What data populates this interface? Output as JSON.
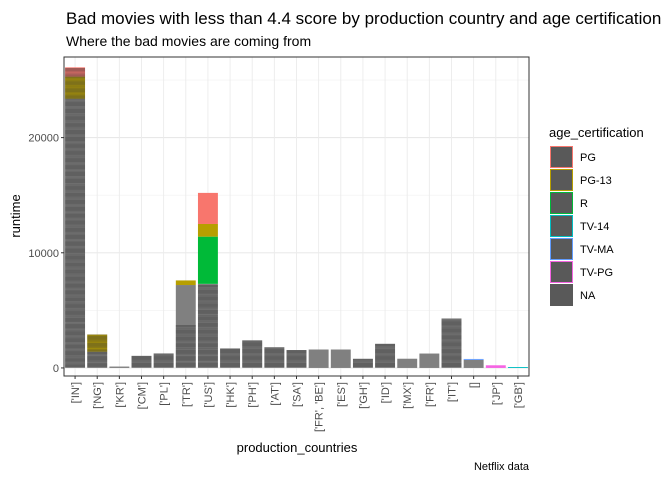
{
  "chart_data": {
    "type": "bar",
    "title": "Bad movies with less than 4.4 score by production country and age certification",
    "subtitle": "Where the bad movies are coming from",
    "xlabel": "production_countries",
    "ylabel": "runtime",
    "caption": "Netflix data",
    "ylim": [
      -700,
      27000
    ],
    "y_ticks": [
      0,
      10000,
      20000
    ],
    "y_tick_labels": [
      "0",
      "10000",
      "20000"
    ],
    "grid": true,
    "categories": [
      "['IN']",
      "['NG']",
      "['KR']",
      "['CM']",
      "['PL']",
      "['TR']",
      "['US']",
      "['HK']",
      "['PH']",
      "['AT']",
      "['SA']",
      "['FR', 'BE']",
      "['ES']",
      "['GH']",
      "['ID']",
      "['MX']",
      "['FR']",
      "['IT']",
      "[]",
      "['JP']",
      "['GB']"
    ],
    "legend": {
      "title": "age_certification",
      "position": "right",
      "entries": [
        {
          "label": "PG",
          "color": "#F8766D"
        },
        {
          "label": "PG-13",
          "color": "#B79F00"
        },
        {
          "label": "R",
          "color": "#00BA38"
        },
        {
          "label": "TV-14",
          "color": "#00BFC4"
        },
        {
          "label": "TV-MA",
          "color": "#619CFF"
        },
        {
          "label": "TV-PG",
          "color": "#F564E3"
        },
        {
          "label": "NA",
          "color": "#595959"
        }
      ]
    },
    "series": [
      {
        "name": "PG",
        "color": "#F8766D",
        "values": [
          800,
          0,
          0,
          0,
          0,
          0,
          2700,
          0,
          0,
          0,
          0,
          0,
          0,
          0,
          0,
          0,
          0,
          0,
          0,
          0,
          0
        ]
      },
      {
        "name": "PG-13",
        "color": "#B79F00",
        "values": [
          1900,
          1500,
          0,
          0,
          0,
          400,
          1100,
          0,
          0,
          0,
          0,
          0,
          0,
          0,
          0,
          0,
          0,
          0,
          0,
          0,
          0
        ]
      },
      {
        "name": "R",
        "color": "#00BA38",
        "values": [
          0,
          0,
          0,
          0,
          0,
          0,
          4100,
          0,
          0,
          0,
          0,
          0,
          0,
          0,
          0,
          0,
          0,
          0,
          0,
          0,
          0
        ]
      },
      {
        "name": "TV-14",
        "color": "#00BFC4",
        "values": [
          0,
          0,
          0,
          0,
          0,
          0,
          0,
          0,
          0,
          0,
          0,
          0,
          0,
          0,
          0,
          0,
          0,
          0,
          0,
          0,
          80
        ]
      },
      {
        "name": "TV-MA",
        "color": "#619CFF",
        "values": [
          0,
          0,
          0,
          0,
          0,
          0,
          0,
          0,
          0,
          0,
          0,
          0,
          0,
          0,
          0,
          0,
          0,
          0,
          80,
          0,
          0
        ]
      },
      {
        "name": "TV-PG",
        "color": "#F564E3",
        "values": [
          0,
          0,
          0,
          0,
          0,
          0,
          0,
          0,
          0,
          0,
          0,
          0,
          0,
          0,
          0,
          0,
          0,
          0,
          0,
          230,
          0
        ]
      },
      {
        "name": "NA",
        "color": "#808080",
        "values": [
          23400,
          1400,
          120,
          1050,
          1250,
          7200,
          7300,
          1700,
          2400,
          1800,
          1550,
          1600,
          1600,
          800,
          2100,
          800,
          1250,
          4300,
          700,
          0,
          0
        ]
      }
    ],
    "inner_lines": [
      [
        120,
        105,
        103,
        100,
        103,
        105,
        100,
        110,
        100,
        98,
        105,
        103,
        100,
        98,
        100,
        105,
        110,
        103,
        100,
        98,
        105,
        103,
        100,
        107,
        100,
        98,
        103,
        100,
        105,
        103,
        100,
        98,
        105,
        100,
        103,
        100,
        98,
        105,
        110,
        100,
        103,
        100,
        105,
        98,
        100,
        103,
        105,
        100,
        98,
        100,
        103,
        105,
        100,
        103,
        98,
        100,
        110,
        105,
        100,
        103,
        98,
        100,
        105,
        103,
        100,
        98,
        105,
        100,
        103,
        100,
        98,
        105,
        103,
        100,
        98,
        100,
        103,
        105,
        100,
        98,
        103,
        100,
        105,
        103,
        100,
        98,
        103,
        100,
        105,
        103,
        100,
        98,
        105,
        100,
        103,
        100,
        98,
        105,
        103,
        100,
        98,
        100,
        103,
        105,
        100,
        98,
        103,
        100,
        105,
        103,
        100,
        98,
        105,
        100,
        103,
        100,
        98,
        105,
        103,
        100,
        98,
        100,
        103,
        105,
        100,
        98,
        103,
        100,
        105,
        103,
        100,
        98,
        105,
        100,
        103,
        100,
        98,
        105,
        103,
        100,
        98,
        100,
        103,
        105,
        100,
        98,
        103,
        100,
        105,
        103,
        100,
        98,
        105,
        100,
        103,
        100,
        98,
        105,
        103,
        100,
        98,
        100,
        103,
        105,
        100,
        98,
        103,
        100,
        105,
        103,
        100,
        98,
        105,
        100,
        103,
        100,
        98,
        105,
        103,
        100,
        98,
        100,
        103,
        105,
        100,
        98,
        103,
        100,
        105,
        103,
        100,
        98,
        105,
        100,
        103,
        100,
        98,
        105,
        103,
        100,
        98,
        100,
        103,
        105,
        100,
        98,
        103,
        100,
        105,
        103,
        100,
        98,
        105,
        100,
        103,
        100,
        98,
        105,
        103,
        100,
        98,
        100,
        103,
        105,
        100,
        98,
        103,
        100,
        105,
        103,
        100,
        98,
        105,
        100,
        103,
        100,
        98,
        105,
        103,
        100,
        98,
        100,
        103,
        105,
        100,
        98,
        103,
        100,
        105,
        103,
        100,
        98,
        105,
        100,
        103,
        100,
        98,
        105,
        103,
        100,
        98,
        100,
        103,
        105,
        100,
        98,
        103
      ],
      [
        100,
        110,
        95,
        105,
        110,
        98,
        100,
        105,
        95,
        100,
        110,
        105,
        95,
        105,
        98,
        100,
        110,
        95,
        105,
        100,
        98,
        110,
        100,
        95,
        105,
        100,
        98,
        110
      ],
      [],
      [
        105,
        100,
        98,
        103,
        105,
        100,
        98,
        103,
        105,
        100
      ],
      [
        105,
        100,
        98,
        103,
        105,
        100,
        98,
        103,
        105,
        100,
        98,
        103
      ],
      [
        100,
        110,
        95,
        100,
        105,
        110,
        98,
        100,
        105,
        95,
        110,
        100,
        98,
        105,
        100,
        110,
        95,
        105,
        100,
        98,
        110,
        105,
        100,
        95,
        105,
        100,
        110,
        98,
        100,
        105,
        95,
        110,
        100,
        98,
        105,
        110
      ],
      [
        100,
        110,
        95,
        100,
        105,
        110,
        98,
        100,
        105,
        95,
        110,
        100,
        98,
        105,
        100,
        110,
        95,
        105,
        100,
        98,
        110,
        105,
        100,
        95,
        105,
        100,
        110,
        98,
        100,
        105,
        95,
        110,
        100,
        98,
        105,
        110,
        100,
        95,
        105,
        100,
        110,
        98,
        100,
        105,
        95,
        110,
        100,
        98,
        105,
        110,
        100,
        95,
        105,
        100,
        110,
        98,
        100,
        105,
        95,
        110,
        100,
        98,
        105,
        110,
        100,
        95,
        105,
        100,
        110,
        98
      ],
      [
        105,
        100,
        98,
        103,
        105,
        100,
        98,
        103,
        105,
        100,
        98,
        103,
        105,
        100,
        98,
        103
      ],
      [
        105,
        100,
        98,
        103,
        105,
        100,
        98,
        103,
        105,
        100,
        98,
        103,
        105,
        100,
        98,
        103,
        105,
        100,
        98,
        103,
        105,
        100,
        98
      ],
      [
        105,
        100,
        98,
        103,
        105,
        100,
        98,
        103,
        105,
        100,
        98,
        103,
        105,
        100,
        98,
        103,
        105,
        100
      ],
      [
        105,
        100,
        98,
        103,
        105,
        100,
        98,
        103,
        105,
        100,
        98,
        103,
        105,
        100,
        98
      ],
      [],
      [],
      [
        105,
        100,
        98,
        103,
        105,
        100,
        98,
        103
      ],
      [
        105,
        100,
        98,
        103,
        105,
        100,
        98,
        103,
        105,
        100,
        98,
        103,
        105,
        100,
        98,
        103,
        105,
        100,
        98,
        103,
        100
      ],
      [],
      [],
      [
        105,
        100,
        98,
        103,
        105,
        100,
        98,
        103,
        105,
        100,
        98,
        103,
        105,
        100,
        98,
        103,
        105,
        100,
        98,
        103,
        105,
        100,
        98,
        103,
        105,
        100,
        98,
        103,
        105,
        100,
        98,
        103,
        105,
        100,
        98,
        103,
        105,
        100,
        98,
        103,
        100
      ],
      [],
      [],
      []
    ]
  }
}
